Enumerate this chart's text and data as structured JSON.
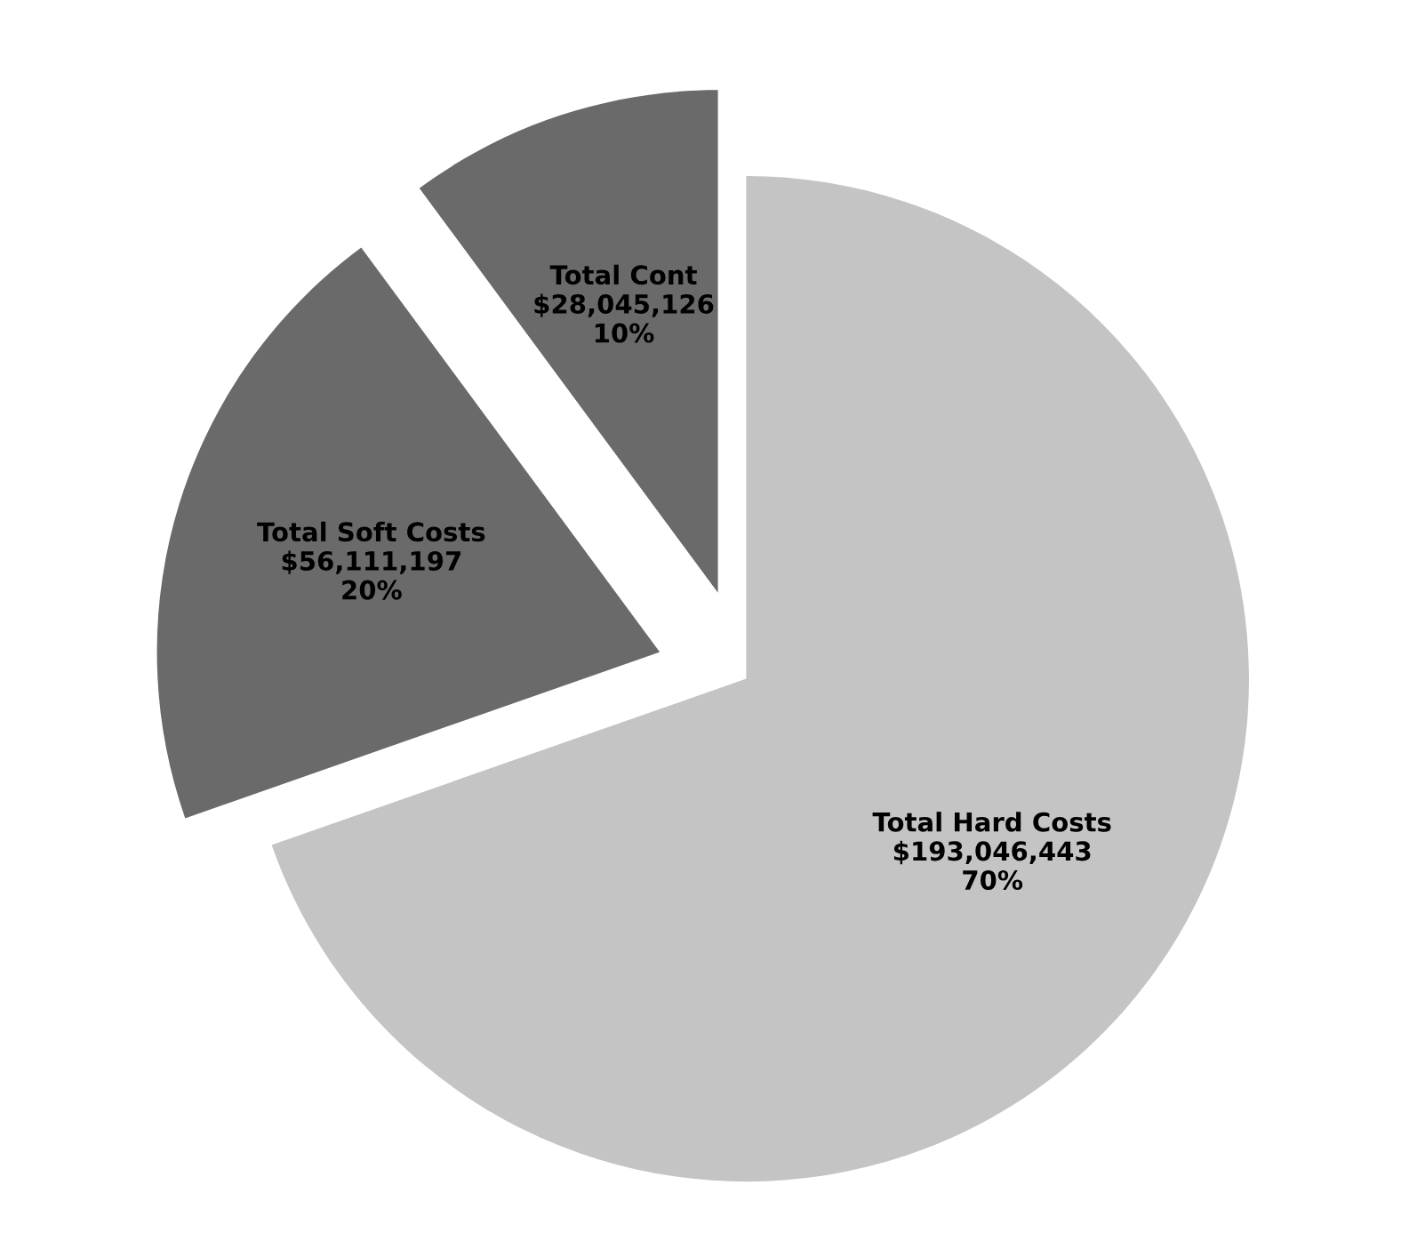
{
  "chart_data": {
    "type": "pie",
    "categories": [
      "Total Hard Costs",
      "Total Soft Costs",
      "Total Cont"
    ],
    "values": [
      193046443,
      56111197,
      28045126
    ],
    "value_labels": [
      "$193,046,443\n70%",
      "$56,111,197\n20%",
      "$28,045,126\n10%"
    ],
    "colors": [
      "#c4c4c4",
      "#6a6a6a",
      "#6a6a6a"
    ],
    "legend": false
  }
}
